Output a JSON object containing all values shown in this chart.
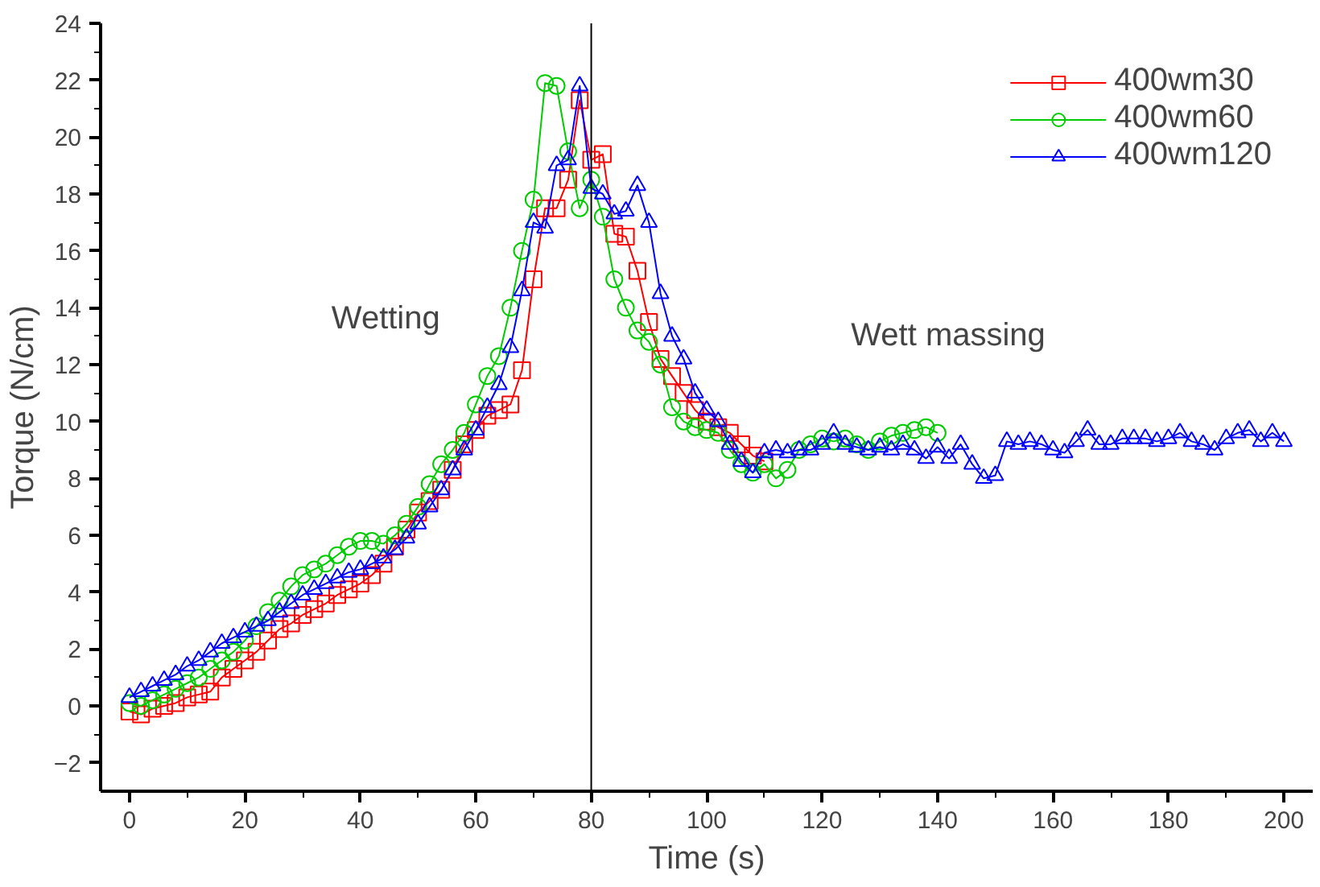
{
  "chart_data": {
    "type": "line",
    "xlabel": "Time (s)",
    "ylabel": "Torque (N/cm)",
    "xlim": [
      -5,
      205
    ],
    "ylim": [
      -3,
      24
    ],
    "xticks": [
      0,
      20,
      40,
      60,
      80,
      100,
      120,
      140,
      160,
      180,
      200
    ],
    "yticks": [
      -2,
      0,
      2,
      4,
      6,
      8,
      10,
      12,
      14,
      16,
      18,
      20,
      22,
      24
    ],
    "grid": false,
    "legend": "top right",
    "annotations": [
      "Wetting",
      "Wett massing"
    ],
    "ref_lines": [
      {
        "axis": "x",
        "value": 80,
        "label": null,
        "color": "#000000"
      }
    ],
    "series": [
      {
        "name": "400wm30",
        "color": "#ff0000",
        "marker": "square",
        "x": [
          0,
          2,
          4,
          6,
          8,
          10,
          12,
          14,
          16,
          18,
          20,
          22,
          24,
          26,
          28,
          30,
          32,
          34,
          36,
          38,
          40,
          42,
          44,
          46,
          48,
          50,
          52,
          54,
          56,
          58,
          60,
          62,
          64,
          66,
          68,
          70,
          72,
          74,
          76,
          78,
          80,
          82,
          84,
          86,
          88,
          90,
          92,
          94,
          96,
          98,
          100,
          102,
          104,
          106,
          108,
          110
        ],
        "values": [
          -0.2,
          -0.3,
          -0.1,
          0,
          0.1,
          0.3,
          0.4,
          0.5,
          1.0,
          1.3,
          1.6,
          1.9,
          2.3,
          2.7,
          2.9,
          3.2,
          3.4,
          3.6,
          3.9,
          4.1,
          4.3,
          4.6,
          5.0,
          5.6,
          6.2,
          6.8,
          7.2,
          7.6,
          8.3,
          9.2,
          9.7,
          10.2,
          10.4,
          10.6,
          11.8,
          15.0,
          17.5,
          17.5,
          18.5,
          21.3,
          19.2,
          19.4,
          16.6,
          16.5,
          15.3,
          13.5,
          12.2,
          11.6,
          11.0,
          10.4,
          10.0,
          9.8,
          9.6,
          9.2,
          8.8,
          8.6
        ]
      },
      {
        "name": "400wm60",
        "color": "#00cc00",
        "marker": "circle",
        "x": [
          0,
          2,
          4,
          6,
          8,
          10,
          12,
          14,
          16,
          18,
          20,
          22,
          24,
          26,
          28,
          30,
          32,
          34,
          36,
          38,
          40,
          42,
          44,
          46,
          48,
          50,
          52,
          54,
          56,
          58,
          60,
          62,
          64,
          66,
          68,
          70,
          72,
          74,
          76,
          78,
          80,
          82,
          84,
          86,
          88,
          90,
          92,
          94,
          96,
          98,
          100,
          102,
          104,
          106,
          108,
          110,
          112,
          114,
          116,
          118,
          120,
          122,
          124,
          126,
          128,
          130,
          132,
          134,
          136,
          138,
          140
        ],
        "values": [
          0.1,
          0,
          0.2,
          0.4,
          0.6,
          0.8,
          1.0,
          1.3,
          1.6,
          1.9,
          2.3,
          2.8,
          3.3,
          3.7,
          4.2,
          4.6,
          4.8,
          5.0,
          5.3,
          5.6,
          5.8,
          5.8,
          5.7,
          6.0,
          6.4,
          7.0,
          7.8,
          8.5,
          9.0,
          9.6,
          10.6,
          11.6,
          12.3,
          14.0,
          16.0,
          17.8,
          21.9,
          21.8,
          19.5,
          17.5,
          18.5,
          17.2,
          15.0,
          14.0,
          13.2,
          12.8,
          12.0,
          10.5,
          10.0,
          9.8,
          9.7,
          9.6,
          9.0,
          8.5,
          8.2,
          8.5,
          8.0,
          8.3,
          9.0,
          9.2,
          9.4,
          9.3,
          9.4,
          9.2,
          9.0,
          9.3,
          9.5,
          9.6,
          9.7,
          9.8,
          9.6
        ]
      },
      {
        "name": "400wm120",
        "color": "#0000ff",
        "marker": "triangle",
        "x": [
          0,
          2,
          4,
          6,
          8,
          10,
          12,
          14,
          16,
          18,
          20,
          22,
          24,
          26,
          28,
          30,
          32,
          34,
          36,
          38,
          40,
          42,
          44,
          46,
          48,
          50,
          52,
          54,
          56,
          58,
          60,
          62,
          64,
          66,
          68,
          70,
          72,
          74,
          76,
          78,
          80,
          82,
          84,
          86,
          88,
          90,
          92,
          94,
          96,
          98,
          100,
          102,
          104,
          106,
          108,
          110,
          112,
          114,
          116,
          118,
          120,
          122,
          124,
          126,
          128,
          130,
          132,
          134,
          136,
          138,
          140,
          142,
          144,
          146,
          148,
          150,
          152,
          154,
          156,
          158,
          160,
          162,
          164,
          166,
          168,
          170,
          172,
          174,
          176,
          178,
          180,
          182,
          184,
          186,
          188,
          190,
          192,
          194,
          196,
          198,
          200
        ],
        "values": [
          0.3,
          0.5,
          0.7,
          0.9,
          1.1,
          1.4,
          1.6,
          1.9,
          2.2,
          2.4,
          2.6,
          2.8,
          3.0,
          3.3,
          3.6,
          3.9,
          4.1,
          4.3,
          4.5,
          4.7,
          4.8,
          5.0,
          5.2,
          5.5,
          5.9,
          6.4,
          7.0,
          7.6,
          8.3,
          9.0,
          9.7,
          10.5,
          11.3,
          12.6,
          14.6,
          17.0,
          16.8,
          19.0,
          19.2,
          21.8,
          18.2,
          18.0,
          17.3,
          17.4,
          18.3,
          17.0,
          14.5,
          13.0,
          12.2,
          11.0,
          10.4,
          10.0,
          9.2,
          8.6,
          8.2,
          8.9,
          9.0,
          8.9,
          9.0,
          9.0,
          9.2,
          9.6,
          9.2,
          9.1,
          9.0,
          9.1,
          9.0,
          9.2,
          9.0,
          8.7,
          9.1,
          8.7,
          9.2,
          8.5,
          8.0,
          8.1,
          9.3,
          9.2,
          9.3,
          9.2,
          9.0,
          8.9,
          9.3,
          9.7,
          9.2,
          9.2,
          9.4,
          9.4,
          9.4,
          9.3,
          9.4,
          9.6,
          9.3,
          9.2,
          9.0,
          9.4,
          9.6,
          9.7,
          9.3,
          9.6,
          9.3
        ]
      }
    ]
  }
}
